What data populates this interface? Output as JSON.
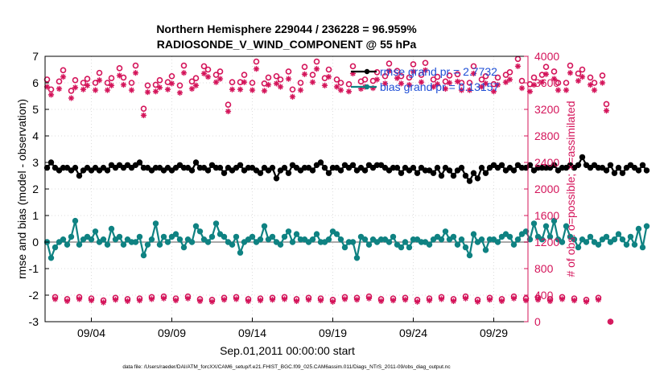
{
  "chart_data": {
    "type": "line",
    "title": "Northern Hemisphere 229044 / 236228 = 96.959%",
    "subtitle": "RADIOSONDE_V_WIND_COMPONENT @ 55 hPa",
    "xlabel": "Sep.01,2011 00:00:00 start",
    "ylabel_left": "rmse and bias (model - observation)",
    "ylabel_right": "# of obs: o=possible; ×=assimilated",
    "footer": "data file: /Users/raeder/DAI/ATM_forcXX/CAM6_setup/f.e21.FHIST_BGC.f09_025.CAM6assim.011/Diags_NTrS_2011-09/obs_diag_output.nc",
    "x_ticks": [
      "09/04",
      "09/09",
      "09/14",
      "09/19",
      "09/24",
      "09/29"
    ],
    "x_tick_days": [
      4,
      9,
      14,
      19,
      24,
      29
    ],
    "x_range_days": [
      1.125,
      31.125
    ],
    "ylim_left": [
      -3,
      7
    ],
    "yticks_left": [
      "-3",
      "-2",
      "-1",
      "0",
      "1",
      "2",
      "3",
      "4",
      "5",
      "6",
      "7"
    ],
    "ylim_right": [
      0,
      4000
    ],
    "yticks_right": [
      "0",
      "400",
      "800",
      "1200",
      "1600",
      "2000",
      "2400",
      "2800",
      "3200",
      "3600",
      "4000"
    ],
    "grid": true,
    "legend_position": "top-right",
    "legend": [
      "rmse grand pr = 2.7732",
      "bias grand pr = 0.13157"
    ],
    "colors": {
      "rmse": "#000000",
      "bias": "#0f8282",
      "obs": "#d4145a",
      "zero_line": "#aaaaaa",
      "legend_text": "#1f4fd6",
      "grid": "#dddddd"
    },
    "t_start_day": 1.25,
    "t_step_day": 0.25,
    "series": [
      {
        "name": "rmse",
        "axis": "left",
        "values": [
          2.8,
          3.0,
          2.8,
          2.7,
          2.8,
          2.8,
          2.7,
          2.8,
          2.5,
          2.7,
          2.8,
          2.7,
          2.8,
          2.7,
          2.8,
          2.7,
          2.9,
          2.8,
          2.9,
          2.8,
          2.9,
          2.8,
          2.9,
          3.0,
          2.8,
          2.8,
          2.7,
          2.8,
          2.8,
          2.7,
          2.8,
          2.7,
          2.8,
          2.9,
          2.8,
          2.8,
          2.7,
          3.0,
          2.8,
          2.8,
          2.7,
          2.9,
          2.8,
          2.8,
          2.6,
          2.8,
          2.7,
          2.8,
          2.9,
          2.7,
          2.8,
          2.8,
          2.7,
          2.6,
          2.8,
          2.7,
          2.8,
          2.4,
          2.7,
          2.8,
          2.6,
          2.9,
          2.8,
          2.7,
          2.8,
          2.8,
          2.7,
          2.9,
          3.0,
          2.8,
          2.6,
          2.8,
          2.8,
          2.7,
          2.9,
          2.8,
          2.9,
          2.7,
          2.8,
          2.7,
          2.9,
          2.8,
          2.9,
          2.9,
          2.8,
          2.7,
          2.8,
          2.8,
          2.6,
          2.8,
          2.7,
          2.8,
          2.6,
          2.8,
          2.7,
          2.7,
          2.6,
          2.8,
          2.5,
          2.8,
          2.7,
          2.5,
          2.7,
          2.8,
          2.5,
          2.3,
          2.6,
          2.4,
          2.8,
          2.6,
          2.8,
          2.9,
          2.8,
          2.9,
          2.7,
          2.8,
          2.7,
          2.9,
          2.8,
          2.8,
          2.9,
          2.7,
          2.8,
          2.8,
          2.8,
          2.8,
          2.9,
          2.7,
          2.8,
          2.8,
          2.9,
          2.8,
          2.9,
          3.2,
          2.9,
          2.8,
          2.9,
          2.8,
          2.8,
          2.7,
          2.9,
          2.6,
          2.8,
          2.6,
          2.8,
          2.9,
          2.8,
          2.7,
          2.9,
          2.7
        ]
      },
      {
        "name": "bias",
        "axis": "left",
        "values": [
          0.0,
          -0.6,
          -0.2,
          0.0,
          0.1,
          -0.1,
          0.2,
          0.8,
          -0.1,
          0.1,
          0.2,
          0.1,
          0.4,
          0.0,
          0.1,
          -0.1,
          0.5,
          0.1,
          0.2,
          -0.1,
          0.1,
          0.0,
          0.0,
          0.2,
          -0.5,
          -0.1,
          0.1,
          0.7,
          -0.1,
          0.2,
          0.0,
          0.2,
          0.3,
          0.1,
          -0.2,
          0.1,
          0.0,
          0.6,
          0.4,
          0.1,
          0.0,
          0.2,
          0.7,
          0.3,
          0.2,
          0.0,
          -0.1,
          0.2,
          -0.4,
          0.0,
          0.1,
          0.2,
          0.0,
          0.1,
          0.6,
          0.1,
          0.2,
          0.0,
          -0.1,
          0.2,
          0.4,
          0.0,
          0.3,
          0.1,
          0.1,
          0.0,
          0.1,
          0.3,
          0.0,
          0.0,
          0.1,
          0.4,
          0.3,
          0.1,
          -0.2,
          0.0,
          0.0,
          -0.6,
          0.2,
          0.1,
          -0.1,
          0.1,
          0.0,
          0.1,
          0.1,
          0.0,
          0.2,
          -0.1,
          -0.2,
          0.0,
          -0.2,
          0.1,
          0.1,
          0.0,
          0.0,
          -0.1,
          0.1,
          0.2,
          0.1,
          0.4,
          0.1,
          0.2,
          -0.1,
          0.1,
          -0.2,
          -0.5,
          0.3,
          0.0,
          0.1,
          -0.3,
          0.1,
          0.1,
          0.0,
          0.2,
          0.3,
          0.2,
          -0.1,
          0.1,
          0.3,
          0.4,
          0.1,
          0.7,
          0.2,
          0.1,
          0.6,
          0.2,
          0.8,
          0.1,
          0.0,
          0.6,
          0.2,
          0.1,
          -0.2,
          0.1,
          0.0,
          0.2,
          0.0,
          -0.1,
          0.1,
          0.2,
          0.0,
          0.1,
          0.3,
          0.1,
          -0.1,
          0.2,
          -0.1,
          0.5,
          -0.2,
          0.6
        ]
      },
      {
        "name": "obs_possible",
        "axis": "right",
        "values": [
          3650,
          3500,
          370,
          3620,
          3790,
          340,
          3480,
          3640,
          370,
          3600,
          3660,
          350,
          3600,
          3750,
          320,
          3600,
          3670,
          360,
          3820,
          3680,
          340,
          3600,
          3860,
          350,
          3210,
          3560,
          370,
          3570,
          3640,
          380,
          3610,
          3700,
          350,
          3560,
          3860,
          380,
          3620,
          3670,
          340,
          3850,
          3800,
          330,
          3720,
          3770,
          360,
          3270,
          3610,
          370,
          3610,
          3720,
          340,
          3600,
          3920,
          350,
          3590,
          3680,
          360,
          3700,
          3650,
          370,
          3770,
          3500,
          340,
          3600,
          3840,
          360,
          3720,
          3920,
          350,
          3670,
          3800,
          330,
          3650,
          3600,
          370,
          3580,
          3850,
          360,
          3620,
          3650,
          380,
          3630,
          3760,
          340,
          3700,
          3890,
          350,
          3780,
          3700,
          360,
          3680,
          3880,
          330,
          3720,
          3900,
          350,
          3650,
          3690,
          370,
          3620,
          3710,
          340,
          3730,
          3600,
          380,
          3600,
          3850,
          330,
          3650,
          3700,
          360,
          3580,
          3680,
          340,
          3720,
          3760,
          380,
          3960,
          3630,
          350,
          3580,
          3680,
          360,
          3720,
          3840,
          340,
          3770,
          3600,
          370,
          3600,
          3860,
          350,
          3740,
          3800,
          330,
          3680,
          3600,
          360,
          3710,
          3280,
          0
        ]
      },
      {
        "name": "obs_assimilated",
        "axis": "right",
        "values": [
          3540,
          3420,
          340,
          3510,
          3690,
          310,
          3370,
          3530,
          340,
          3500,
          3560,
          320,
          3490,
          3640,
          290,
          3490,
          3560,
          330,
          3710,
          3570,
          310,
          3490,
          3750,
          320,
          3110,
          3460,
          340,
          3470,
          3530,
          350,
          3500,
          3590,
          320,
          3450,
          3750,
          350,
          3510,
          3560,
          310,
          3740,
          3690,
          300,
          3610,
          3660,
          330,
          3170,
          3500,
          340,
          3500,
          3610,
          310,
          3490,
          3810,
          320,
          3480,
          3570,
          330,
          3590,
          3540,
          340,
          3660,
          3390,
          310,
          3490,
          3730,
          330,
          3610,
          3810,
          320,
          3560,
          3690,
          300,
          3540,
          3490,
          340,
          3470,
          3740,
          330,
          3510,
          3540,
          350,
          3520,
          3650,
          310,
          3590,
          3780,
          320,
          3670,
          3590,
          330,
          3570,
          3770,
          300,
          3610,
          3790,
          320,
          3540,
          3580,
          340,
          3510,
          3600,
          310,
          3620,
          3490,
          350,
          3490,
          3740,
          300,
          3540,
          3590,
          330,
          3470,
          3570,
          310,
          3610,
          3650,
          350,
          3850,
          3520,
          320,
          3470,
          3570,
          330,
          3610,
          3730,
          310,
          3660,
          3490,
          340,
          3490,
          3750,
          320,
          3630,
          3690,
          300,
          3570,
          3490,
          330,
          3600,
          3180,
          0
        ]
      }
    ]
  }
}
